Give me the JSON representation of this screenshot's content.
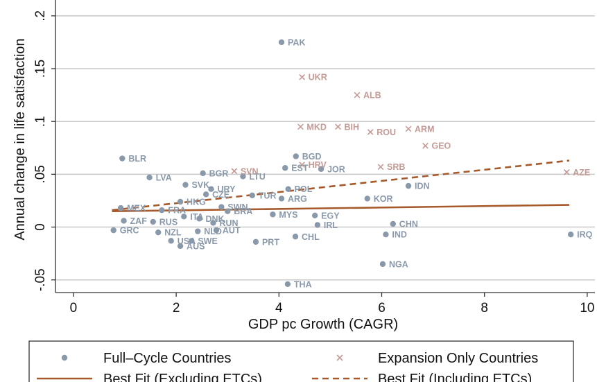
{
  "chart_data": {
    "type": "scatter",
    "title": "",
    "xlabel": "GDP pc Growth (CAGR)",
    "ylabel": "Annual change in life satisfaction",
    "xlim": [
      -0.35,
      10.15
    ],
    "ylim": [
      -0.062,
      0.215
    ],
    "xticks": [
      0,
      2,
      4,
      6,
      8,
      10
    ],
    "xtick_labels": [
      "0",
      "2",
      "4",
      "6",
      "8",
      "10"
    ],
    "yticks": [
      -0.05,
      0,
      0.05,
      0.1,
      0.15,
      0.2
    ],
    "ytick_labels": [
      "-.05",
      "0",
      ".05",
      ".1",
      ".15",
      ".2"
    ],
    "grid": true,
    "colors": {
      "full": "#8a99aa",
      "expansion": "#c39a95",
      "fit": "#a65a2b"
    },
    "series": [
      {
        "name": "Full-Cycle Countries",
        "marker": "dot",
        "points": [
          {
            "label": "PAK",
            "x": 4.05,
            "y": 0.175
          },
          {
            "label": "BLR",
            "x": 0.95,
            "y": 0.065
          },
          {
            "label": "BGD",
            "x": 4.33,
            "y": 0.067
          },
          {
            "label": "EST",
            "x": 4.12,
            "y": 0.056
          },
          {
            "label": "JOR",
            "x": 4.82,
            "y": 0.055
          },
          {
            "label": "LVA",
            "x": 1.48,
            "y": 0.047
          },
          {
            "label": "BGR",
            "x": 2.52,
            "y": 0.051
          },
          {
            "label": "LTU",
            "x": 3.3,
            "y": 0.048
          },
          {
            "label": "SVK",
            "x": 2.18,
            "y": 0.04
          },
          {
            "label": "IDN",
            "x": 6.52,
            "y": 0.039
          },
          {
            "label": "URY",
            "x": 2.68,
            "y": 0.036
          },
          {
            "label": "POL",
            "x": 4.18,
            "y": 0.036
          },
          {
            "label": "TUR",
            "x": 3.48,
            "y": 0.03
          },
          {
            "label": "ARG",
            "x": 4.05,
            "y": 0.027
          },
          {
            "label": "KOR",
            "x": 5.72,
            "y": 0.027
          },
          {
            "label": "HKG",
            "x": 2.08,
            "y": 0.024
          },
          {
            "label": "CZE",
            "x": 2.58,
            "y": 0.031
          },
          {
            "label": "MEX",
            "x": 0.92,
            "y": 0.018
          },
          {
            "label": "FRA",
            "x": 1.72,
            "y": 0.016
          },
          {
            "label": "SWN",
            "x": 2.88,
            "y": 0.019
          },
          {
            "label": "BRA",
            "x": 3.0,
            "y": 0.015
          },
          {
            "label": "MYS",
            "x": 3.88,
            "y": 0.012
          },
          {
            "label": "EGY",
            "x": 4.7,
            "y": 0.011
          },
          {
            "label": "ITA",
            "x": 2.15,
            "y": 0.01
          },
          {
            "label": "DNK",
            "x": 2.45,
            "y": 0.008
          },
          {
            "label": "RUN",
            "x": 2.72,
            "y": 0.004
          },
          {
            "label": "ZAF",
            "x": 0.98,
            "y": 0.006
          },
          {
            "label": "RUS",
            "x": 1.55,
            "y": 0.005
          },
          {
            "label": "IRL",
            "x": 4.75,
            "y": 0.002
          },
          {
            "label": "CHN",
            "x": 6.22,
            "y": 0.003
          },
          {
            "label": "GRC",
            "x": 0.78,
            "y": -0.003
          },
          {
            "label": "NZL",
            "x": 1.65,
            "y": -0.005
          },
          {
            "label": "AUT",
            "x": 2.78,
            "y": -0.003
          },
          {
            "label": "NLD",
            "x": 2.42,
            "y": -0.004
          },
          {
            "label": "CHL",
            "x": 4.32,
            "y": -0.009
          },
          {
            "label": "IND",
            "x": 6.08,
            "y": -0.007
          },
          {
            "label": "IRQ",
            "x": 9.68,
            "y": -0.007
          },
          {
            "label": "USA",
            "x": 1.9,
            "y": -0.013
          },
          {
            "label": "SWE",
            "x": 2.3,
            "y": -0.013
          },
          {
            "label": "AUS",
            "x": 2.08,
            "y": -0.018
          },
          {
            "label": "PRT",
            "x": 3.55,
            "y": -0.014
          },
          {
            "label": "NGA",
            "x": 6.02,
            "y": -0.035
          },
          {
            "label": "THA",
            "x": 4.17,
            "y": -0.054
          }
        ]
      },
      {
        "name": "Expansion Only Countries",
        "marker": "x",
        "points": [
          {
            "label": "UKR",
            "x": 4.45,
            "y": 0.142
          },
          {
            "label": "ALB",
            "x": 5.52,
            "y": 0.125
          },
          {
            "label": "MKD",
            "x": 4.42,
            "y": 0.095
          },
          {
            "label": "BIH",
            "x": 5.15,
            "y": 0.095
          },
          {
            "label": "ROU",
            "x": 5.78,
            "y": 0.09
          },
          {
            "label": "ARM",
            "x": 6.52,
            "y": 0.093
          },
          {
            "label": "GEO",
            "x": 6.85,
            "y": 0.077
          },
          {
            "label": "SRB",
            "x": 5.98,
            "y": 0.057
          },
          {
            "label": "SVN",
            "x": 3.13,
            "y": 0.053
          },
          {
            "label": "HRV",
            "x": 4.45,
            "y": 0.059
          },
          {
            "label": "AZE",
            "x": 9.6,
            "y": 0.052
          }
        ]
      }
    ],
    "fit_lines": [
      {
        "name": "Best Fit (Excluding ETCs)",
        "style": "solid",
        "x": [
          0.75,
          9.65
        ],
        "y": [
          0.015,
          0.021
        ]
      },
      {
        "name": "Best Fit (Including ETCs)",
        "style": "dashed",
        "x": [
          0.75,
          9.65
        ],
        "y": [
          0.016,
          0.063
        ]
      }
    ]
  },
  "legend": {
    "placement": "bottom",
    "items": [
      {
        "label": "Full–Cycle Countries",
        "marker": "dot"
      },
      {
        "label": "Expansion Only Countries",
        "marker": "x"
      },
      {
        "label": "Best Fit (Excluding ETCs)",
        "marker": "solid"
      },
      {
        "label": "Best Fit (Including ETCs)",
        "marker": "dashed"
      }
    ]
  }
}
